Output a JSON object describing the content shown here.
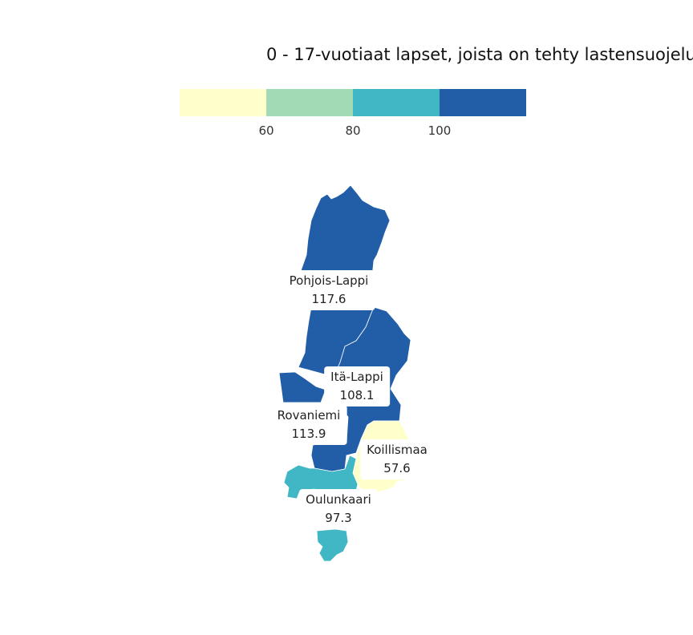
{
  "title": "0 - 17-vuotiaat lapset, joista on tehty lastensuojelu",
  "legend": {
    "colors": [
      "#ffffcc",
      "#a1dab4",
      "#41b6c4",
      "#225ea8"
    ],
    "ticks": [
      "60",
      "80",
      "100"
    ]
  },
  "regions": [
    {
      "name": "Pohjois-Lappi",
      "value": "117.6",
      "color": "#225ea8"
    },
    {
      "name": "Itä-Lappi",
      "value": "108.1",
      "color": "#225ea8"
    },
    {
      "name": "Rovaniemi",
      "value": "113.9",
      "color": "#225ea8"
    },
    {
      "name": "Koillismaa",
      "value": "57.6",
      "color": "#ffffcc"
    },
    {
      "name": "Oulunkaari",
      "value": "97.3",
      "color": "#41b6c4"
    }
  ]
}
